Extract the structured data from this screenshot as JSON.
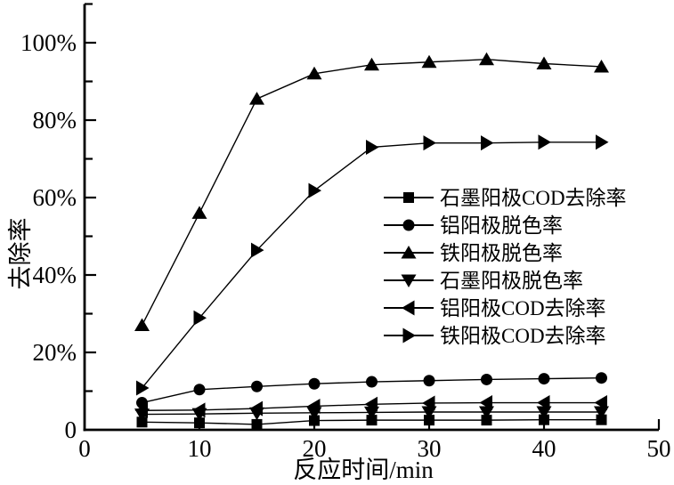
{
  "figure": {
    "background": "#ffffff",
    "ink_color": "#000000"
  },
  "chart_data": {
    "type": "line",
    "title": "",
    "xlabel": "反应时间/min",
    "ylabel": "去除率",
    "xlim": [
      0,
      50
    ],
    "ylim": [
      0,
      110
    ],
    "grid": false,
    "legend_position": "inside-right-middle",
    "x_ticks": {
      "major": [
        0,
        10,
        20,
        30,
        40,
        50
      ],
      "labels": [
        "0",
        "10",
        "20",
        "30",
        "40",
        "50"
      ]
    },
    "y_ticks": {
      "major": [
        0,
        20,
        40,
        60,
        80,
        100
      ],
      "labels": [
        "0",
        "20%",
        "40%",
        "60%",
        "80%",
        "100%"
      ],
      "minor": [
        10,
        30,
        50,
        70,
        90,
        110
      ]
    },
    "x": [
      5,
      10,
      15,
      20,
      25,
      30,
      35,
      40,
      45
    ],
    "series": [
      {
        "name": "石墨阳极COD去除率",
        "marker": "square",
        "color": "#000000",
        "values": [
          2.0,
          1.8,
          1.4,
          2.4,
          2.5,
          2.5,
          2.5,
          2.6,
          2.6
        ]
      },
      {
        "name": "铝阳极脱色率",
        "marker": "circle",
        "color": "#000000",
        "values": [
          7.0,
          10.4,
          11.2,
          11.9,
          12.4,
          12.7,
          13.0,
          13.2,
          13.4
        ]
      },
      {
        "name": "铁阳极脱色率",
        "marker": "triangle-up",
        "color": "#000000",
        "values": [
          27.0,
          56.0,
          85.5,
          92.0,
          94.3,
          95.0,
          95.7,
          94.6,
          93.8
        ]
      },
      {
        "name": "石墨阳极脱色率",
        "marker": "triangle-down",
        "color": "#000000",
        "values": [
          4.0,
          4.1,
          4.3,
          4.4,
          4.5,
          4.6,
          4.6,
          4.6,
          4.6
        ]
      },
      {
        "name": "铝阳极COD去除率",
        "marker": "triangle-left",
        "color": "#000000",
        "values": [
          5.0,
          5.1,
          5.5,
          6.1,
          6.6,
          6.9,
          7.0,
          7.0,
          7.0
        ]
      },
      {
        "name": "铁阳极COD去除率",
        "marker": "triangle-right",
        "color": "#000000",
        "values": [
          10.8,
          28.9,
          46.4,
          61.8,
          73.0,
          74.1,
          74.1,
          74.3,
          74.3
        ]
      }
    ]
  }
}
